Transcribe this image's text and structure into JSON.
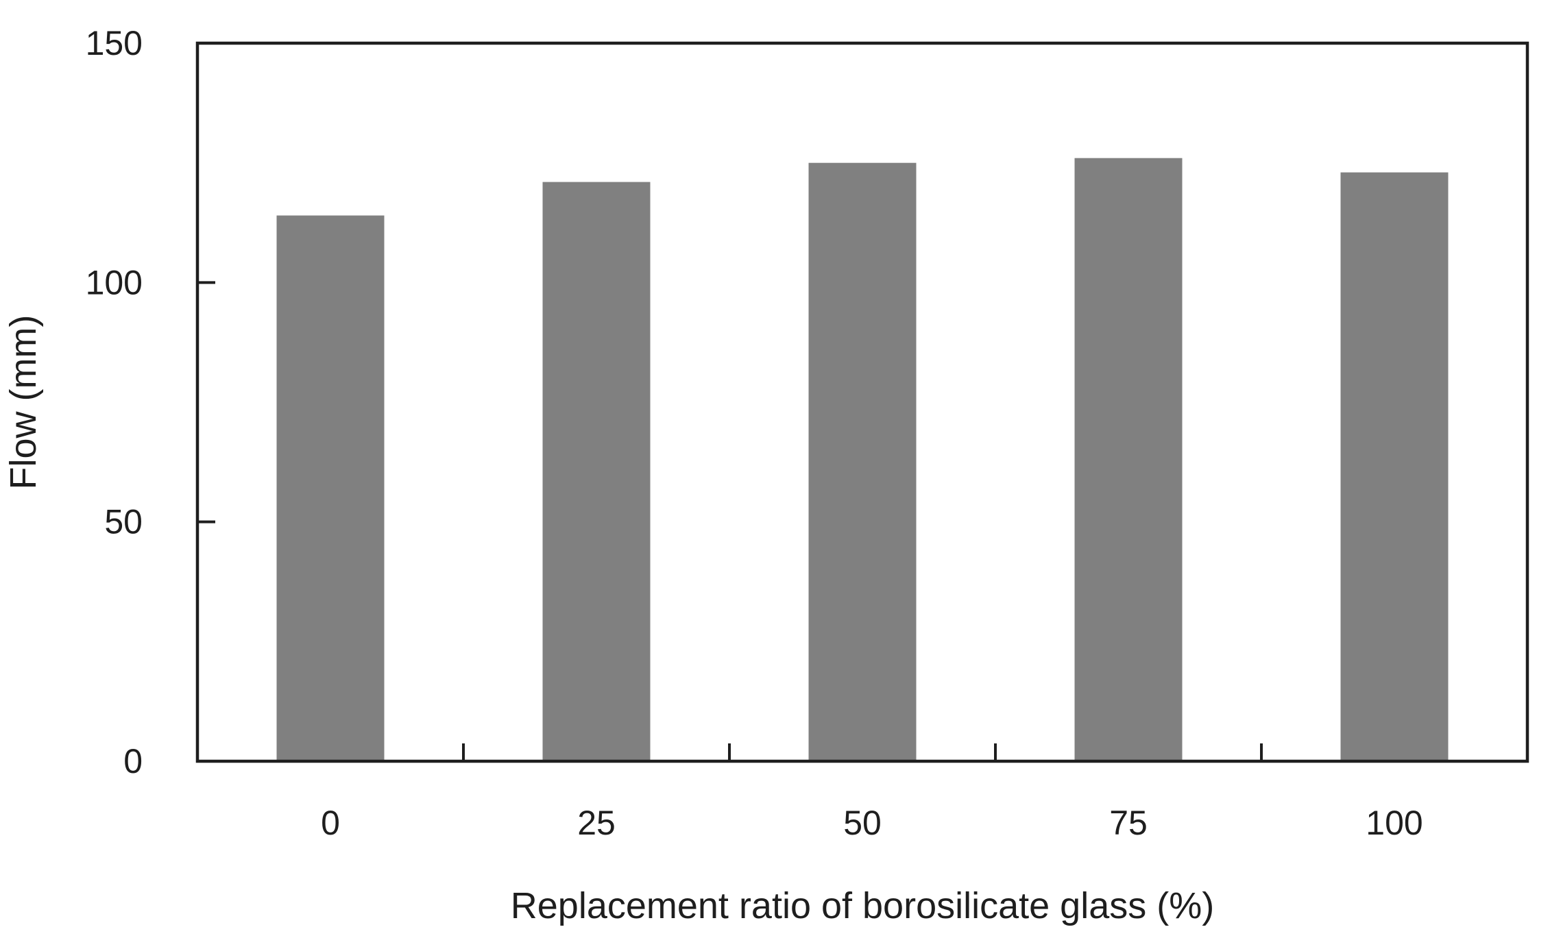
{
  "chart_data": {
    "type": "bar",
    "categories": [
      "0",
      "25",
      "50",
      "75",
      "100"
    ],
    "values": [
      114,
      121,
      125,
      126,
      123
    ],
    "xlabel": "Replacement ratio of borosilicate glass (%)",
    "ylabel": "Flow (mm)",
    "ylim": [
      0,
      150
    ],
    "yticks": [
      0,
      50,
      100,
      150
    ],
    "grid": false,
    "legend": false,
    "bar_color": "#808080",
    "axis_color": "#1e1e1e",
    "background": "#ffffff"
  }
}
